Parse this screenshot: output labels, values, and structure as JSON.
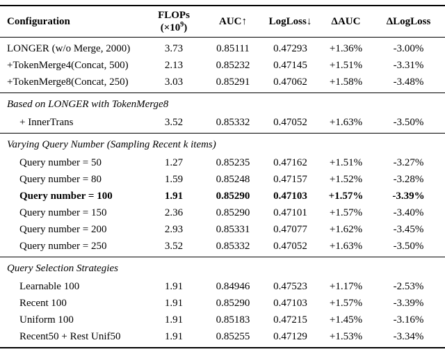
{
  "header": {
    "configuration": "Configuration",
    "flops_line1": "FLOPs",
    "flops_base": "(×10",
    "flops_exp": "9",
    "flops_end": ")",
    "auc": "AUC↑",
    "logloss": "LogLoss↓",
    "delta_auc": "ΔAUC",
    "delta_logloss": "ΔLogLoss"
  },
  "sections": [
    {
      "rows": [
        {
          "label": "LONGER (w/o Merge, 2000)",
          "flops": "3.73",
          "auc": "0.85111",
          "logloss": "0.47293",
          "delta_auc": "+1.36%",
          "delta_logloss": "-3.00%"
        },
        {
          "label": "+TokenMerge4(Concat, 500)",
          "flops": "2.13",
          "auc": "0.85232",
          "logloss": "0.47145",
          "delta_auc": "+1.51%",
          "delta_logloss": "-3.31%"
        },
        {
          "label": "+TokenMerge8(Concat, 250)",
          "flops": "3.03",
          "auc": "0.85291",
          "logloss": "0.47062",
          "delta_auc": "+1.58%",
          "delta_logloss": "-3.48%"
        }
      ]
    },
    {
      "title": "Based on LONGER with TokenMerge8",
      "rows": [
        {
          "label": "+ InnerTrans",
          "flops": "3.52",
          "auc": "0.85332",
          "logloss": "0.47052",
          "delta_auc": "+1.63%",
          "delta_logloss": "-3.50%"
        }
      ]
    },
    {
      "title": "Varying Query Number (Sampling Recent k items)",
      "rows": [
        {
          "label": "Query number = 50",
          "flops": "1.27",
          "auc": "0.85235",
          "logloss": "0.47162",
          "delta_auc": "+1.51%",
          "delta_logloss": "-3.27%"
        },
        {
          "label": "Query number = 80",
          "flops": "1.59",
          "auc": "0.85248",
          "logloss": "0.47157",
          "delta_auc": "+1.52%",
          "delta_logloss": "-3.28%"
        },
        {
          "label": "Query number = 100",
          "flops": "1.91",
          "auc": "0.85290",
          "logloss": "0.47103",
          "delta_auc": "+1.57%",
          "delta_logloss": "-3.39%",
          "bold": true
        },
        {
          "label": "Query number = 150",
          "flops": "2.36",
          "auc": "0.85290",
          "logloss": "0.47101",
          "delta_auc": "+1.57%",
          "delta_logloss": "-3.40%"
        },
        {
          "label": "Query number = 200",
          "flops": "2.93",
          "auc": "0.85331",
          "logloss": "0.47077",
          "delta_auc": "+1.62%",
          "delta_logloss": "-3.45%"
        },
        {
          "label": "Query number = 250",
          "flops": "3.52",
          "auc": "0.85332",
          "logloss": "0.47052",
          "delta_auc": "+1.63%",
          "delta_logloss": "-3.50%"
        }
      ]
    },
    {
      "title": "Query Selection Strategies",
      "rows": [
        {
          "label": "Learnable 100",
          "flops": "1.91",
          "auc": "0.84946",
          "logloss": "0.47523",
          "delta_auc": "+1.17%",
          "delta_logloss": "-2.53%"
        },
        {
          "label": "Recent 100",
          "flops": "1.91",
          "auc": "0.85290",
          "logloss": "0.47103",
          "delta_auc": "+1.57%",
          "delta_logloss": "-3.39%"
        },
        {
          "label": "Uniform 100",
          "flops": "1.91",
          "auc": "0.85183",
          "logloss": "0.47215",
          "delta_auc": "+1.45%",
          "delta_logloss": "-3.16%"
        },
        {
          "label": "Recent50 + Rest Unif50",
          "flops": "1.91",
          "auc": "0.85255",
          "logloss": "0.47129",
          "delta_auc": "+1.53%",
          "delta_logloss": "-3.34%"
        }
      ]
    }
  ]
}
